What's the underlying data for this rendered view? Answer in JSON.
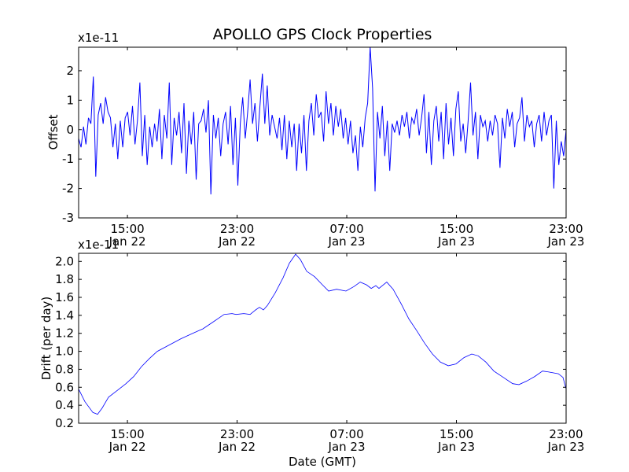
{
  "chart_data": [
    {
      "type": "line",
      "title": "APOLLO GPS Clock Properties",
      "ylabel": "Offset",
      "y_multiplier": "x1e-11",
      "xlabel": "",
      "ylim": [
        -3,
        2.8
      ],
      "xlim_hours_from_jan22": [
        11.44,
        47.0
      ],
      "yticks": [
        -3,
        -2,
        -1,
        0,
        1,
        2
      ],
      "xticks": [
        {
          "hour": 15,
          "time": "15:00",
          "date": "Jan 22"
        },
        {
          "hour": 23,
          "time": "23:00",
          "date": "Jan 22"
        },
        {
          "hour": 31,
          "time": "07:00",
          "date": "Jan 23"
        },
        {
          "hour": 39,
          "time": "15:00",
          "date": "Jan 23"
        },
        {
          "hour": 47,
          "time": "23:00",
          "date": "Jan 23"
        }
      ],
      "color": "#0000ff",
      "series": [
        {
          "name": "Offset",
          "x_start": 11.44,
          "x_end": 47.0,
          "values": [
            -0.3,
            -0.6,
            0.1,
            -0.5,
            0.4,
            0.2,
            1.8,
            -1.6,
            0.5,
            0.9,
            0.2,
            1.1,
            0.6,
            0.4,
            -0.6,
            0.2,
            -1.0,
            0.3,
            -0.6,
            0.4,
            0.6,
            -0.2,
            0.8,
            -0.5,
            0.3,
            1.6,
            -0.9,
            0.5,
            -1.2,
            0.1,
            -0.6,
            0.2,
            -0.4,
            0.7,
            -1.0,
            0.5,
            -0.3,
            1.6,
            -1.2,
            0.4,
            -0.2,
            0.6,
            -0.8,
            0.9,
            -1.5,
            0.3,
            -0.5,
            0.6,
            -1.7,
            0.2,
            0.3,
            0.7,
            -0.1,
            1.0,
            -2.2,
            0.5,
            -0.3,
            0.4,
            -0.9,
            0.2,
            0.6,
            -0.5,
            0.8,
            -1.2,
            0.4,
            -1.9,
            0.2,
            1.1,
            -0.3,
            0.6,
            1.7,
            0.2,
            0.9,
            -0.4,
            0.8,
            1.9,
            0.2,
            1.5,
            -0.2,
            0.5,
            0.1,
            -0.3,
            0.4,
            -0.7,
            0.5,
            -1.0,
            0.3,
            -0.6,
            0.2,
            -1.4,
            0.2,
            -0.8,
            0.5,
            -1.4,
            0.3,
            0.9,
            -0.2,
            1.2,
            0.4,
            0.6,
            -0.4,
            1.3,
            0.2,
            0.9,
            -0.2,
            0.8,
            0.1,
            0.7,
            -0.3,
            0.4,
            -0.5,
            0.3,
            -0.8,
            -0.2,
            -1.4,
            0.1,
            -0.6,
            0.4,
            0.9,
            2.8,
            1.4,
            -2.1,
            0.6,
            -0.3,
            0.8,
            -0.9,
            0.3,
            -1.4,
            0.2,
            -0.1,
            0.3,
            -0.2,
            0.5,
            0.1,
            0.6,
            -0.3,
            0.4,
            0.2,
            0.7,
            -0.2,
            0.4,
            1.2,
            -0.8,
            0.6,
            -1.2,
            0.3,
            0.8,
            -0.4,
            0.6,
            -1.0,
            0.9,
            -0.5,
            0.4,
            -0.9,
            0.7,
            1.3,
            -0.4,
            0.2,
            -0.8,
            0.3,
            1.6,
            -0.2,
            0.6,
            -1.0,
            0.5,
            0.1,
            0.3,
            -0.4,
            0.3,
            -0.2,
            0.5,
            0.2,
            -1.3,
            0.4,
            -0.3,
            0.7,
            0.1,
            0.6,
            -0.6,
            0.2,
            0.4,
            1.1,
            -0.4,
            0.5,
            0.1,
            0.3,
            -0.6,
            0.2,
            0.5,
            -0.4,
            0.6,
            -0.2,
            0.3,
            0.5,
            -2.0,
            0.3,
            -1.2,
            -0.4,
            -0.9,
            0.0
          ]
        }
      ]
    },
    {
      "type": "line",
      "title": "",
      "ylabel": "Drift (per day)",
      "y_multiplier": "x1e-11",
      "xlabel": "Date (GMT)",
      "ylim": [
        0.2,
        2.09
      ],
      "xlim_hours_from_jan22": [
        11.44,
        47.0
      ],
      "yticks": [
        0.2,
        0.4,
        0.6,
        0.8,
        1.0,
        1.2,
        1.4,
        1.6,
        1.8,
        2.0
      ],
      "xticks": [
        {
          "hour": 15,
          "time": "15:00",
          "date": "Jan 22"
        },
        {
          "hour": 23,
          "time": "23:00",
          "date": "Jan 22"
        },
        {
          "hour": 31,
          "time": "07:00",
          "date": "Jan 23"
        },
        {
          "hour": 39,
          "time": "15:00",
          "date": "Jan 23"
        },
        {
          "hour": 47,
          "time": "23:00",
          "date": "Jan 23"
        }
      ],
      "color": "#0000ff",
      "series": [
        {
          "name": "Drift",
          "x": [
            11.44,
            11.9,
            12.48,
            12.82,
            13.16,
            13.62,
            14.31,
            14.89,
            15.46,
            16.03,
            16.61,
            17.18,
            18.04,
            18.9,
            19.76,
            20.51,
            21.19,
            22.05,
            22.63,
            22.92,
            23.49,
            23.95,
            24.35,
            24.63,
            24.92,
            25.21,
            25.78,
            26.36,
            26.81,
            27.27,
            27.62,
            28.08,
            28.65,
            29.22,
            29.68,
            30.26,
            30.94,
            31.52,
            31.98,
            32.43,
            32.78,
            33.12,
            33.35,
            33.92,
            34.38,
            34.96,
            35.53,
            36.1,
            36.68,
            37.25,
            37.83,
            38.4,
            38.97,
            39.55,
            40.12,
            40.58,
            41.15,
            41.73,
            42.42,
            43.1,
            43.56,
            44.14,
            44.71,
            45.28,
            45.74,
            46.43,
            46.77,
            47.0
          ],
          "values": [
            0.58,
            0.44,
            0.32,
            0.3,
            0.37,
            0.49,
            0.57,
            0.64,
            0.72,
            0.83,
            0.92,
            1.0,
            1.07,
            1.14,
            1.2,
            1.25,
            1.32,
            1.41,
            1.42,
            1.41,
            1.42,
            1.41,
            1.46,
            1.49,
            1.46,
            1.51,
            1.65,
            1.82,
            1.98,
            2.08,
            2.02,
            1.89,
            1.83,
            1.74,
            1.67,
            1.69,
            1.67,
            1.72,
            1.77,
            1.74,
            1.7,
            1.73,
            1.7,
            1.77,
            1.69,
            1.53,
            1.36,
            1.23,
            1.09,
            0.97,
            0.88,
            0.84,
            0.86,
            0.93,
            0.97,
            0.95,
            0.88,
            0.78,
            0.71,
            0.64,
            0.63,
            0.67,
            0.72,
            0.78,
            0.77,
            0.75,
            0.71,
            0.58
          ]
        }
      ]
    }
  ]
}
